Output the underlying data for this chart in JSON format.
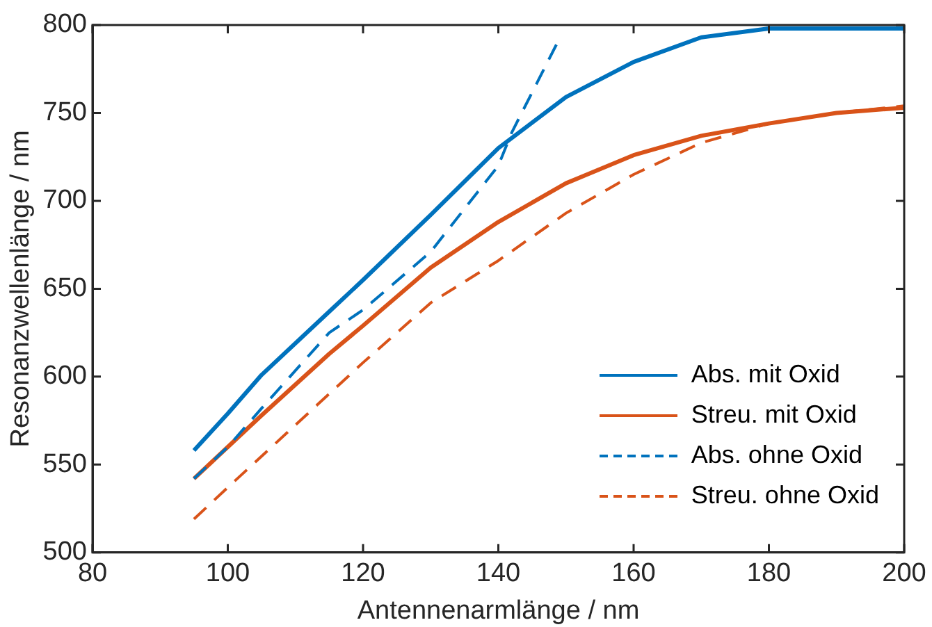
{
  "chart_data": {
    "type": "line",
    "xlabel": "Antennenarmlänge / nm",
    "ylabel": "Resonanzwellenlänge / nm",
    "xlim": [
      80,
      200
    ],
    "xticks": [
      80,
      100,
      120,
      140,
      160,
      180,
      200
    ],
    "ylim": [
      500,
      800
    ],
    "yticks": [
      500,
      550,
      600,
      650,
      700,
      750,
      800
    ],
    "grid": false,
    "legend": "bottom right",
    "marker": "none",
    "series": [
      {
        "name": "Abs. mit Oxid",
        "color": "#0072bd",
        "line_style": "solid",
        "x": [
          95,
          100,
          105,
          115,
          120,
          130,
          140,
          150,
          160,
          170,
          180,
          190,
          200
        ],
        "values": [
          558,
          579,
          601,
          637,
          655,
          692,
          730,
          759,
          779,
          793,
          798,
          798,
          798
        ]
      },
      {
        "name": "Streu. mit Oxid",
        "color": "#d95319",
        "line_style": "solid",
        "x": [
          95,
          100,
          105,
          115,
          120,
          130,
          140,
          150,
          160,
          170,
          180,
          190,
          200
        ],
        "values": [
          542,
          560,
          578,
          613,
          629,
          662,
          688,
          710,
          726,
          737,
          744,
          750,
          753
        ]
      },
      {
        "name": "Abs. ohne Oxid",
        "color": "#0072bd",
        "line_style": "dashed",
        "x": [
          95,
          100,
          105,
          115,
          120,
          130,
          140,
          142,
          149
        ],
        "values": [
          542,
          560,
          582,
          625,
          638,
          671,
          720,
          739,
          792
        ]
      },
      {
        "name": "Streu. ohne Oxid",
        "color": "#d95319",
        "line_style": "dashed",
        "x": [
          95,
          100,
          120,
          130,
          140,
          150,
          160,
          170,
          180,
          190,
          200
        ],
        "values": [
          519,
          537,
          608,
          642,
          666,
          693,
          715,
          733,
          744,
          750,
          754
        ]
      }
    ]
  }
}
